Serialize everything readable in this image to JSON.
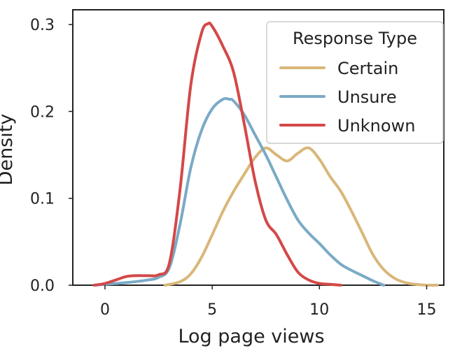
{
  "chart_data": {
    "type": "line",
    "title": "",
    "xlabel": "Log page views",
    "ylabel": "Density",
    "xlim": [
      -1.5,
      15.8
    ],
    "ylim": [
      0,
      0.317
    ],
    "xticks": [
      0,
      5,
      10,
      15
    ],
    "yticks": [
      0.0,
      0.1,
      0.2,
      0.3
    ],
    "xtick_labels": [
      "0",
      "5",
      "10",
      "15"
    ],
    "ytick_labels": [
      "0.0",
      "0.1",
      "0.2",
      "0.3"
    ],
    "grid": false,
    "legend": {
      "title": "Response Type",
      "placement": "top-right"
    },
    "series": [
      {
        "name": "Certain",
        "color": "#d9b779",
        "x": [
          2.8,
          3.5,
          4.0,
          4.5,
          5.0,
          5.5,
          6.0,
          6.5,
          7.0,
          7.5,
          8.0,
          8.5,
          9.0,
          9.5,
          10.0,
          10.5,
          11.0,
          11.5,
          12.0,
          12.5,
          13.0,
          13.5,
          14.0,
          14.5,
          15.0,
          15.5
        ],
        "y": [
          0.0,
          0.004,
          0.013,
          0.032,
          0.058,
          0.085,
          0.108,
          0.128,
          0.147,
          0.158,
          0.15,
          0.143,
          0.152,
          0.158,
          0.145,
          0.125,
          0.108,
          0.085,
          0.06,
          0.035,
          0.018,
          0.008,
          0.003,
          0.001,
          0.0,
          0.0
        ]
      },
      {
        "name": "Unsure",
        "color": "#7aaac6",
        "x": [
          -0.5,
          0.0,
          1.0,
          2.0,
          2.5,
          3.0,
          3.5,
          4.0,
          4.5,
          5.0,
          5.5,
          5.8,
          6.0,
          6.5,
          7.0,
          7.5,
          8.0,
          8.5,
          9.0,
          9.5,
          10.0,
          10.5,
          11.0,
          11.5,
          12.0,
          12.5,
          13.0
        ],
        "y": [
          0.0,
          0.001,
          0.003,
          0.006,
          0.009,
          0.02,
          0.07,
          0.135,
          0.178,
          0.203,
          0.214,
          0.214,
          0.212,
          0.196,
          0.173,
          0.15,
          0.124,
          0.098,
          0.075,
          0.06,
          0.048,
          0.035,
          0.024,
          0.017,
          0.011,
          0.005,
          0.0
        ]
      },
      {
        "name": "Unknown",
        "color": "#d44848",
        "x": [
          -0.5,
          0.0,
          0.5,
          1.0,
          1.5,
          2.0,
          2.5,
          3.0,
          3.5,
          4.0,
          4.5,
          4.8,
          5.0,
          5.5,
          6.0,
          6.5,
          7.0,
          7.5,
          8.0,
          8.5,
          9.0,
          9.5,
          10.0,
          10.5,
          11.0
        ],
        "y": [
          0.0,
          0.002,
          0.006,
          0.01,
          0.011,
          0.011,
          0.012,
          0.025,
          0.11,
          0.23,
          0.29,
          0.301,
          0.298,
          0.275,
          0.245,
          0.185,
          0.12,
          0.075,
          0.058,
          0.035,
          0.015,
          0.006,
          0.002,
          0.001,
          0.0
        ]
      }
    ]
  }
}
